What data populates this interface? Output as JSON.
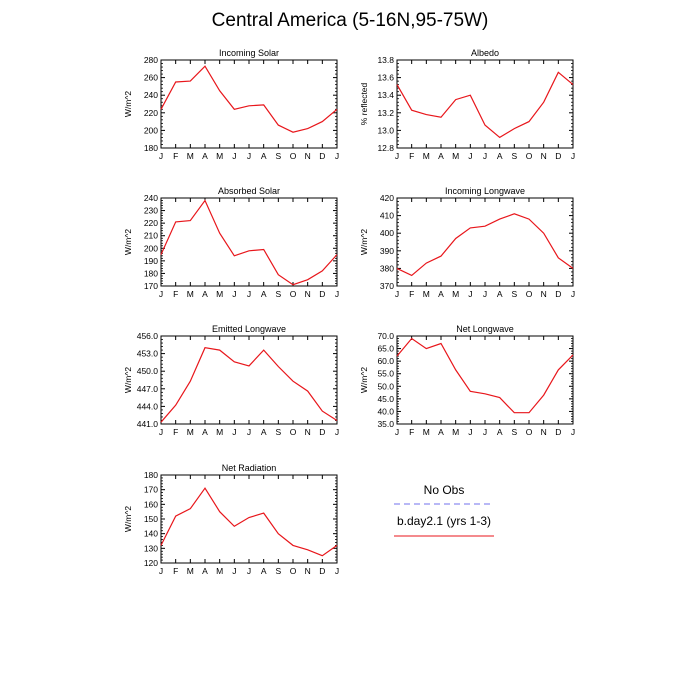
{
  "title": "Central America (5-16N,95-75W)",
  "legend": {
    "entries": [
      {
        "name": "No Obs",
        "color": "#7070ee",
        "dash": true
      },
      {
        "name": "b.day2.1 (yrs 1-3)",
        "color": "#e8161b",
        "dash": false
      }
    ]
  },
  "chart_data": [
    {
      "type": "line",
      "title": "Incoming Solar",
      "ylabel": "W/m^2",
      "categories": [
        "J",
        "F",
        "M",
        "A",
        "M",
        "J",
        "J",
        "A",
        "S",
        "O",
        "N",
        "D",
        "J"
      ],
      "ylim": [
        180,
        280
      ],
      "yticks": [
        "180",
        "200",
        "220",
        "240",
        "260",
        "280"
      ],
      "series": [
        {
          "name": "b.day2.1 (yrs 1-3)",
          "values": [
            224,
            255,
            256,
            273,
            245,
            224,
            228,
            229,
            206,
            198,
            202,
            210,
            224
          ]
        }
      ]
    },
    {
      "type": "line",
      "title": "Albedo",
      "ylabel": "% reflected",
      "categories": [
        "J",
        "F",
        "M",
        "A",
        "M",
        "J",
        "J",
        "A",
        "S",
        "O",
        "N",
        "D",
        "J"
      ],
      "ylim": [
        12.8,
        13.8
      ],
      "yticks": [
        "12.8",
        "13.0",
        "13.2",
        "13.4",
        "13.6",
        "13.8"
      ],
      "series": [
        {
          "name": "b.day2.1 (yrs 1-3)",
          "values": [
            13.52,
            13.23,
            13.18,
            13.15,
            13.35,
            13.4,
            13.06,
            12.92,
            13.02,
            13.1,
            13.32,
            13.66,
            13.52
          ]
        }
      ]
    },
    {
      "type": "line",
      "title": "Absorbed Solar",
      "ylabel": "W/m^2",
      "categories": [
        "J",
        "F",
        "M",
        "A",
        "M",
        "J",
        "J",
        "A",
        "S",
        "O",
        "N",
        "D",
        "J"
      ],
      "ylim": [
        170,
        240
      ],
      "yticks": [
        "170",
        "180",
        "190",
        "200",
        "210",
        "220",
        "230",
        "240"
      ],
      "series": [
        {
          "name": "b.day2.1 (yrs 1-3)",
          "values": [
            195,
            221,
            222,
            238,
            212,
            194,
            198,
            199,
            179,
            171,
            175,
            182,
            195
          ]
        }
      ]
    },
    {
      "type": "line",
      "title": "Incoming Longwave",
      "ylabel": "W/m^2",
      "categories": [
        "J",
        "F",
        "M",
        "A",
        "M",
        "J",
        "J",
        "A",
        "S",
        "O",
        "N",
        "D",
        "J"
      ],
      "ylim": [
        370,
        420
      ],
      "yticks": [
        "370",
        "380",
        "390",
        "400",
        "410",
        "420"
      ],
      "series": [
        {
          "name": "b.day2.1 (yrs 1-3)",
          "values": [
            380,
            376,
            383,
            387,
            397,
            403,
            404,
            408,
            411,
            408,
            400,
            386,
            380
          ]
        }
      ]
    },
    {
      "type": "line",
      "title": "Emitted Longwave",
      "ylabel": "W/m^2",
      "categories": [
        "J",
        "F",
        "M",
        "A",
        "M",
        "J",
        "J",
        "A",
        "S",
        "O",
        "N",
        "D",
        "J"
      ],
      "ylim": [
        441,
        456
      ],
      "yticks": [
        "441.0",
        "444.0",
        "447.0",
        "450.0",
        "453.0",
        "456.0"
      ],
      "series": [
        {
          "name": "b.day2.1 (yrs 1-3)",
          "values": [
            441.3,
            444.2,
            448.3,
            454.0,
            453.6,
            451.6,
            450.9,
            453.6,
            450.8,
            448.3,
            446.6,
            443.2,
            441.6
          ]
        }
      ]
    },
    {
      "type": "line",
      "title": "Net Longwave",
      "ylabel": "W/m^2",
      "categories": [
        "J",
        "F",
        "M",
        "A",
        "M",
        "J",
        "J",
        "A",
        "S",
        "O",
        "N",
        "D",
        "J"
      ],
      "ylim": [
        35,
        70
      ],
      "yticks": [
        "35.0",
        "40.0",
        "45.0",
        "50.0",
        "55.0",
        "60.0",
        "65.0",
        "70.0"
      ],
      "series": [
        {
          "name": "b.day2.1 (yrs 1-3)",
          "values": [
            62,
            69,
            65,
            67,
            56.5,
            48,
            47,
            45.5,
            39.5,
            39.5,
            46.5,
            56.5,
            62.5
          ]
        }
      ]
    },
    {
      "type": "line",
      "title": "Net Radiation",
      "ylabel": "W/m^2",
      "categories": [
        "J",
        "F",
        "M",
        "A",
        "M",
        "J",
        "J",
        "A",
        "S",
        "O",
        "N",
        "D",
        "J"
      ],
      "ylim": [
        120,
        180
      ],
      "yticks": [
        "120",
        "130",
        "140",
        "150",
        "160",
        "170",
        "180"
      ],
      "series": [
        {
          "name": "b.day2.1 (yrs 1-3)",
          "values": [
            132,
            152,
            157,
            171,
            155,
            145,
            151,
            154,
            140,
            132,
            129,
            125,
            132
          ]
        }
      ]
    }
  ]
}
